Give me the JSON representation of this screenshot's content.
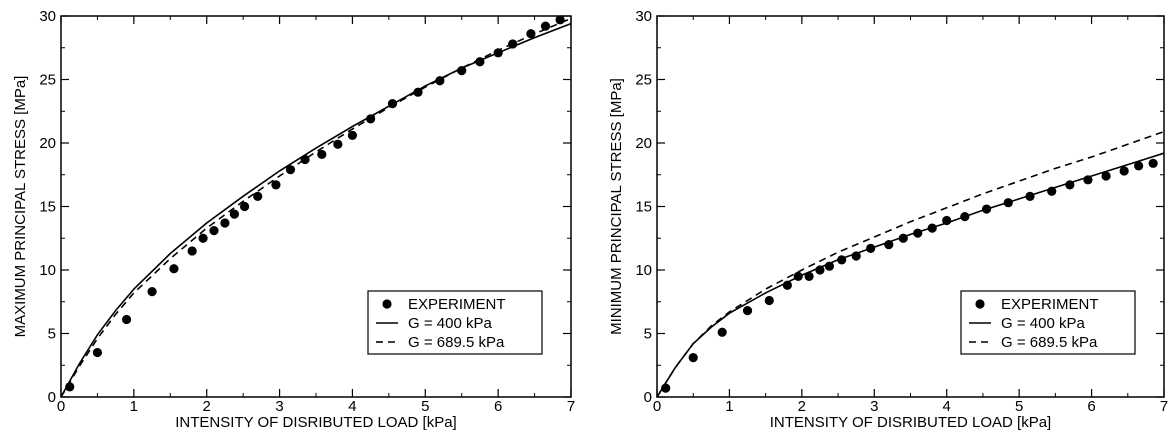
{
  "chart_data": [
    {
      "type": "scatter",
      "xlabel": "INTENSITY OF DISRIBUTED LOAD [kPa]",
      "ylabel": "MAXIMUM PRINCIPAL STRESS [MPa]",
      "xlim": [
        0,
        7
      ],
      "ylim": [
        0,
        30
      ],
      "xticks": [
        "0",
        "1",
        "2",
        "3",
        "4",
        "5",
        "6",
        "7"
      ],
      "yticks": [
        "0",
        "5",
        "10",
        "15",
        "20",
        "25",
        "30"
      ],
      "grid": false,
      "legend_position": "bottom-right",
      "series": [
        {
          "name": "EXPERIMENT",
          "style": "dots",
          "x": [
            0.12,
            0.5,
            0.9,
            1.25,
            1.55,
            1.8,
            1.95,
            2.1,
            2.25,
            2.38,
            2.52,
            2.7,
            2.95,
            3.15,
            3.35,
            3.58,
            3.8,
            4.0,
            4.25,
            4.55,
            4.9,
            5.2,
            5.5,
            5.75,
            6.0,
            6.2,
            6.45,
            6.65,
            6.85
          ],
          "y": [
            0.8,
            3.5,
            6.1,
            8.3,
            10.1,
            11.5,
            12.5,
            13.1,
            13.7,
            14.4,
            15.0,
            15.8,
            16.7,
            17.9,
            18.7,
            19.1,
            19.9,
            20.6,
            21.9,
            23.1,
            24.0,
            24.9,
            25.7,
            26.4,
            27.1,
            27.8,
            28.6,
            29.2,
            29.7
          ]
        },
        {
          "name": "G = 400 kPa",
          "style": "solid",
          "x": [
            0,
            0.25,
            0.5,
            0.75,
            1.0,
            1.5,
            2.0,
            2.5,
            3.0,
            3.5,
            4.0,
            4.5,
            5.0,
            5.5,
            6.0,
            6.5,
            7.0
          ],
          "y": [
            0,
            2.6,
            4.9,
            6.8,
            8.5,
            11.3,
            13.7,
            15.8,
            17.8,
            19.6,
            21.3,
            22.9,
            24.5,
            25.9,
            27.1,
            28.3,
            29.4
          ]
        },
        {
          "name": "G = 689.5 kPa",
          "style": "dashed",
          "x": [
            0,
            0.25,
            0.5,
            0.75,
            1.0,
            1.5,
            2.0,
            2.5,
            3.0,
            3.5,
            4.0,
            4.5,
            5.0,
            5.5,
            6.0,
            6.5,
            7.0
          ],
          "y": [
            0,
            2.4,
            4.6,
            6.5,
            8.2,
            10.9,
            13.3,
            15.4,
            17.4,
            19.3,
            21.1,
            22.8,
            24.4,
            25.9,
            27.3,
            28.6,
            29.8
          ]
        }
      ]
    },
    {
      "type": "scatter",
      "xlabel": "INTENSITY OF DISRIBUTED LOAD [kPa]",
      "ylabel": "MINIMUM PRINCIPAL STRESS [MPa]",
      "xlim": [
        0,
        7
      ],
      "ylim": [
        0,
        30
      ],
      "xticks": [
        "0",
        "1",
        "2",
        "3",
        "4",
        "5",
        "6",
        "7"
      ],
      "yticks": [
        "0",
        "5",
        "10",
        "15",
        "20",
        "25",
        "30"
      ],
      "grid": false,
      "legend_position": "bottom-right",
      "series": [
        {
          "name": "EXPERIMENT",
          "style": "dots",
          "x": [
            0.12,
            0.5,
            0.9,
            1.25,
            1.55,
            1.8,
            1.95,
            2.1,
            2.25,
            2.38,
            2.55,
            2.75,
            2.95,
            3.2,
            3.4,
            3.6,
            3.8,
            4.0,
            4.25,
            4.55,
            4.85,
            5.15,
            5.45,
            5.7,
            5.95,
            6.2,
            6.45,
            6.65,
            6.85
          ],
          "y": [
            0.7,
            3.1,
            5.1,
            6.8,
            7.6,
            8.8,
            9.5,
            9.5,
            10.0,
            10.3,
            10.8,
            11.1,
            11.7,
            12.0,
            12.5,
            12.9,
            13.3,
            13.9,
            14.2,
            14.8,
            15.3,
            15.8,
            16.2,
            16.7,
            17.1,
            17.4,
            17.8,
            18.2,
            18.4
          ]
        },
        {
          "name": "G = 400 kPa",
          "style": "solid",
          "x": [
            0,
            0.25,
            0.5,
            0.75,
            1.0,
            1.5,
            2.0,
            2.5,
            3.0,
            3.5,
            4.0,
            4.5,
            5.0,
            5.5,
            6.0,
            6.5,
            7.0
          ],
          "y": [
            0,
            2.3,
            4.2,
            5.5,
            6.6,
            8.2,
            9.6,
            10.8,
            11.8,
            12.8,
            13.7,
            14.7,
            15.6,
            16.5,
            17.4,
            18.3,
            19.2
          ]
        },
        {
          "name": "G = 689.5 kPa",
          "style": "dashed",
          "x": [
            0,
            0.25,
            0.5,
            0.75,
            1.0,
            1.5,
            2.0,
            2.5,
            3.0,
            3.5,
            4.0,
            4.5,
            5.0,
            5.5,
            6.0,
            6.5,
            7.0
          ],
          "y": [
            0,
            2.3,
            4.2,
            5.6,
            6.7,
            8.5,
            10.0,
            11.4,
            12.6,
            13.8,
            14.9,
            16.0,
            17.0,
            18.0,
            18.9,
            19.9,
            20.9
          ]
        }
      ]
    }
  ]
}
